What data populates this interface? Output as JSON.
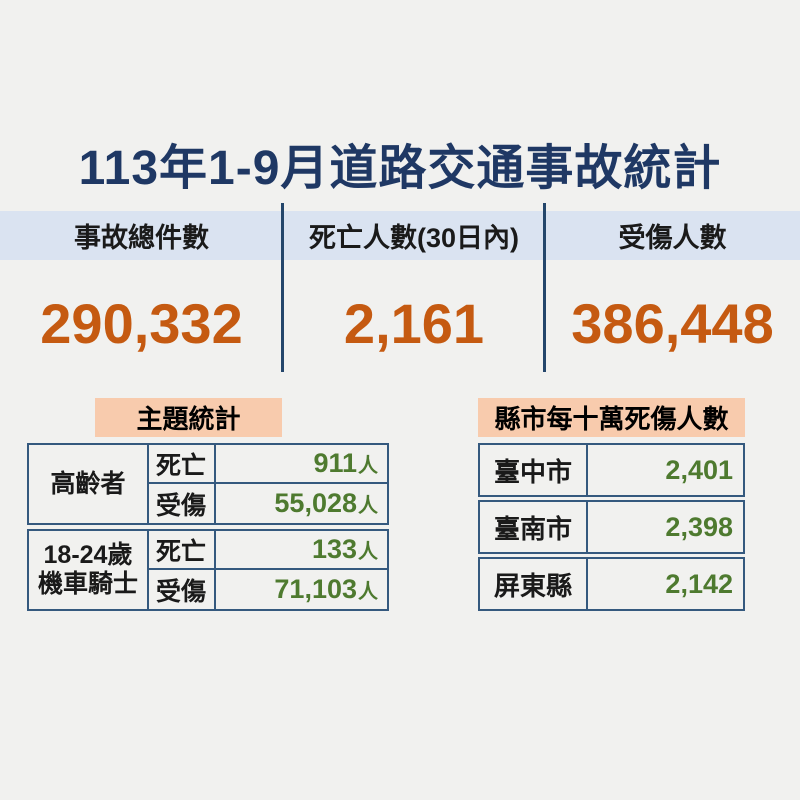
{
  "title": "113年1-9月道路交通事故統計",
  "colors": {
    "background": "#f1f1ef",
    "title_navy": "#1f3864",
    "band_blue": "#dae3f1",
    "accent_orange": "#c55a11",
    "accent_green": "#4e7a2f",
    "chip_peach": "#f8cbad",
    "table_border_navy": "#35597e"
  },
  "summary": {
    "columns": [
      {
        "label": "事故總件數",
        "value": "290,332"
      },
      {
        "label": "死亡人數(30日內)",
        "value": "2,161"
      },
      {
        "label": "受傷人數",
        "value": "386,448"
      }
    ]
  },
  "topic_section": {
    "title": "主題統計",
    "groups": [
      {
        "label_lines": [
          "高齡者"
        ],
        "rows": [
          {
            "type": "死亡",
            "value": "911",
            "unit": "人"
          },
          {
            "type": "受傷",
            "value": "55,028",
            "unit": "人"
          }
        ]
      },
      {
        "label_lines": [
          "18-24歲",
          "機車騎士"
        ],
        "rows": [
          {
            "type": "死亡",
            "value": "133",
            "unit": "人"
          },
          {
            "type": "受傷",
            "value": "71,103",
            "unit": "人"
          }
        ]
      }
    ]
  },
  "city_section": {
    "title": "縣市每十萬死傷人數",
    "rows": [
      {
        "city": "臺中市",
        "value": "2,401"
      },
      {
        "city": "臺南市",
        "value": "2,398"
      },
      {
        "city": "屏東縣",
        "value": "2,142"
      }
    ]
  }
}
